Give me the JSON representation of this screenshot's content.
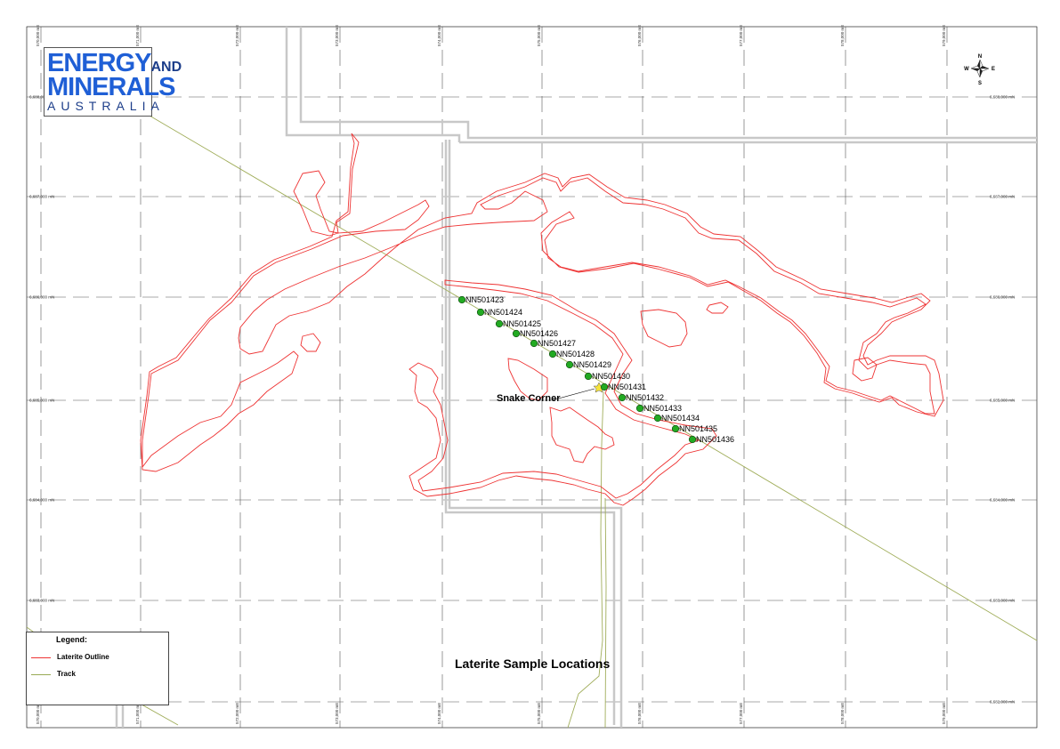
{
  "map_title": "Laterite Sample Locations",
  "place_label": "Snake Corner",
  "logo": {
    "line1": "ENERGY",
    "line1_small": "AND",
    "line2": "MINERALS",
    "line3": "AUSTRALIA"
  },
  "legend": {
    "title": "Legend:",
    "items": [
      {
        "label": "Laterite Outline",
        "color": "#ee3333"
      },
      {
        "label": "Track",
        "color": "#99aa55"
      }
    ]
  },
  "compass": {
    "n": "N",
    "s": "S",
    "e": "E",
    "w": "W"
  },
  "grid": {
    "eastings": [
      "570,000 mE",
      "571,000 mE",
      "572,000 mE",
      "573,000 mE",
      "574,000 mE",
      "575,000 mE",
      "576,000 mE",
      "577,000 mE",
      "578,000 mE",
      "579,000 mE"
    ],
    "northings": [
      "6,688,000 mN",
      "6,687,000 mN",
      "6,686,000 mN",
      "6,685,000 mN",
      "6,684,000 mN",
      "6,683,000 mN",
      "6,682,000 mN"
    ]
  },
  "samples": [
    "NN501423",
    "NN501424",
    "NN501425",
    "NN501426",
    "NN501427",
    "NN501428",
    "NN501429",
    "NN501430",
    "NN501431",
    "NN501432",
    "NN501433",
    "NN501434",
    "NN501435",
    "NN501436"
  ],
  "colors": {
    "laterite": "#ee3333",
    "track": "#99aa55",
    "sample": "#22aa22",
    "grid": "#444444",
    "tenement": "#cccccc"
  }
}
